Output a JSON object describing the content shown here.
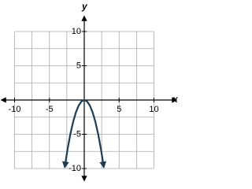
{
  "chart_data": {
    "type": "line",
    "x_label": "x",
    "y_label": "y",
    "x": [
      -2.8,
      -2.4,
      -2,
      -1.6,
      -1.2,
      -0.8,
      -0.4,
      0,
      0.4,
      0.8,
      1.2,
      1.6,
      2,
      2.4,
      2.8
    ],
    "series": [
      {
        "color": "#1b3c57",
        "values": [
          -9.8,
          -7.2,
          -5,
          -3.2,
          -1.8,
          -0.8,
          -0.2,
          0,
          -0.2,
          -0.8,
          -1.8,
          -3.2,
          -5,
          -7.2,
          -9.8
        ]
      }
    ],
    "xlim": [
      -12,
      12
    ],
    "ylim": [
      -12,
      12
    ],
    "xticks": [
      -10,
      -5,
      5,
      10
    ],
    "yticks": [
      -10,
      -5,
      5,
      10
    ],
    "grid_step": 2.5
  }
}
